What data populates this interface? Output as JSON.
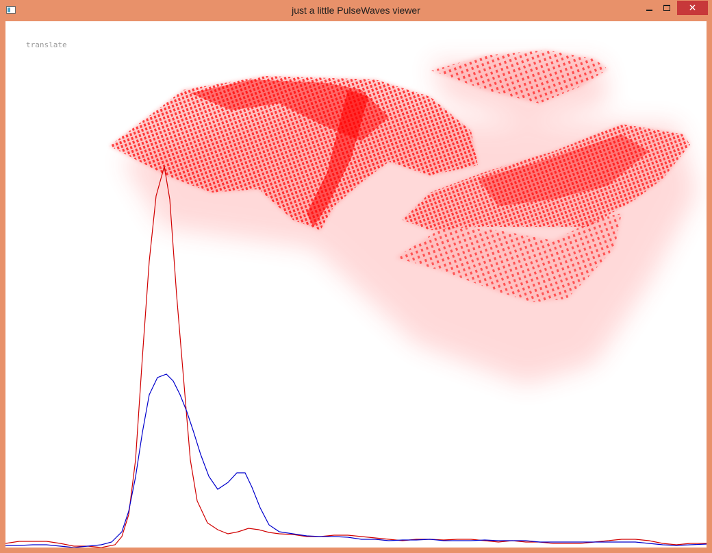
{
  "window": {
    "title": "just a little PulseWaves viewer",
    "controls": {
      "minimize": "minimize",
      "maximize": "maximize",
      "close": "✕"
    },
    "frame_color": "#E8916A",
    "close_color": "#C7383A"
  },
  "viewer": {
    "mode_label": "translate",
    "point_color": "#FF0000",
    "waveform_colors": {
      "outgoing": "#D00000",
      "returning": "#0000CC"
    }
  }
}
